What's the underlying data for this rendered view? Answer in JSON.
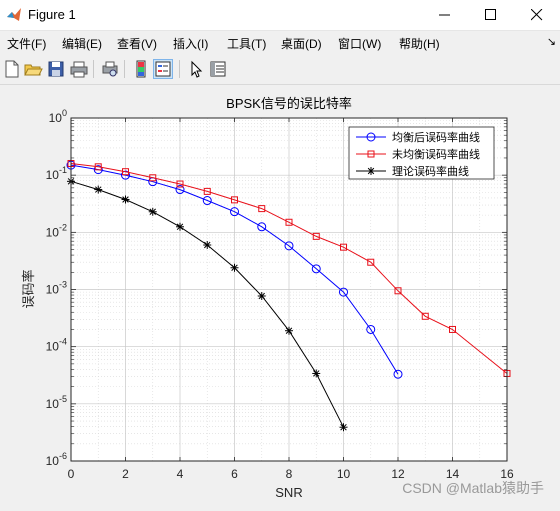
{
  "window": {
    "title": "Figure 1",
    "app_icon": "matlab-icon"
  },
  "menu": {
    "items": [
      "文件(F)",
      "编辑(E)",
      "查看(V)",
      "插入(I)",
      "工具(T)",
      "桌面(D)",
      "窗口(W)",
      "帮助(H)"
    ]
  },
  "toolbar": {
    "icons": [
      "new-figure-icon",
      "open-file-icon",
      "save-icon",
      "print-icon",
      "print-preview-icon",
      "colorbar-icon",
      "legend-icon",
      "pointer-icon",
      "property-inspector-icon"
    ]
  },
  "watermark": "CSDN @Matlab猿助手",
  "chart_data": {
    "type": "line",
    "title": "BPSK信号的误比特率",
    "xlabel": "SNR",
    "ylabel": "误码率",
    "xlim": [
      0,
      16
    ],
    "ylim": [
      1e-06,
      1
    ],
    "yscale": "log",
    "grid": true,
    "minor_grid": true,
    "legend_position": "top-right",
    "x_ticks": [
      0,
      2,
      4,
      6,
      8,
      10,
      12,
      14,
      16
    ],
    "x_tick_labels": [
      "0",
      "2",
      "4",
      "6",
      "8",
      "10",
      "12",
      "14",
      "16"
    ],
    "y_ticks": [
      {
        "value": 1,
        "mantissa": "10",
        "exponent": "0"
      },
      {
        "value": 0.1,
        "mantissa": "10",
        "exponent": "-1"
      },
      {
        "value": 0.01,
        "mantissa": "10",
        "exponent": "-2"
      },
      {
        "value": 0.001,
        "mantissa": "10",
        "exponent": "-3"
      },
      {
        "value": 0.0001,
        "mantissa": "10",
        "exponent": "-4"
      },
      {
        "value": 1e-05,
        "mantissa": "10",
        "exponent": "-5"
      },
      {
        "value": 1e-06,
        "mantissa": "10",
        "exponent": "-6"
      }
    ],
    "series": [
      {
        "name": "均衡后误码率曲线",
        "color": "#0000ff",
        "marker": "circle",
        "x": [
          0,
          1,
          2,
          3,
          4,
          5,
          6,
          7,
          8,
          9,
          10,
          11,
          12
        ],
        "y": [
          0.15,
          0.125,
          0.1,
          0.077,
          0.056,
          0.036,
          0.023,
          0.0125,
          0.0058,
          0.0023,
          0.0009,
          0.0002,
          3.3e-05
        ]
      },
      {
        "name": "未均衡误码率曲线",
        "color": "#e8101a",
        "marker": "square",
        "x": [
          0,
          1,
          2,
          3,
          4,
          5,
          6,
          7,
          8,
          9,
          10,
          11,
          12,
          13,
          14,
          16
        ],
        "y": [
          0.16,
          0.14,
          0.115,
          0.09,
          0.07,
          0.052,
          0.037,
          0.026,
          0.015,
          0.0085,
          0.0055,
          0.003,
          0.00095,
          0.00034,
          0.0002,
          3.4e-05
        ]
      },
      {
        "name": "理论误码率曲线",
        "color": "#000000",
        "marker": "star",
        "x": [
          0,
          1,
          2,
          3,
          4,
          5,
          6,
          7,
          8,
          9,
          10
        ],
        "y": [
          0.078,
          0.056,
          0.0375,
          0.0229,
          0.0125,
          0.006,
          0.0024,
          0.00077,
          0.00019,
          3.4e-05,
          3.9e-06
        ]
      }
    ]
  }
}
